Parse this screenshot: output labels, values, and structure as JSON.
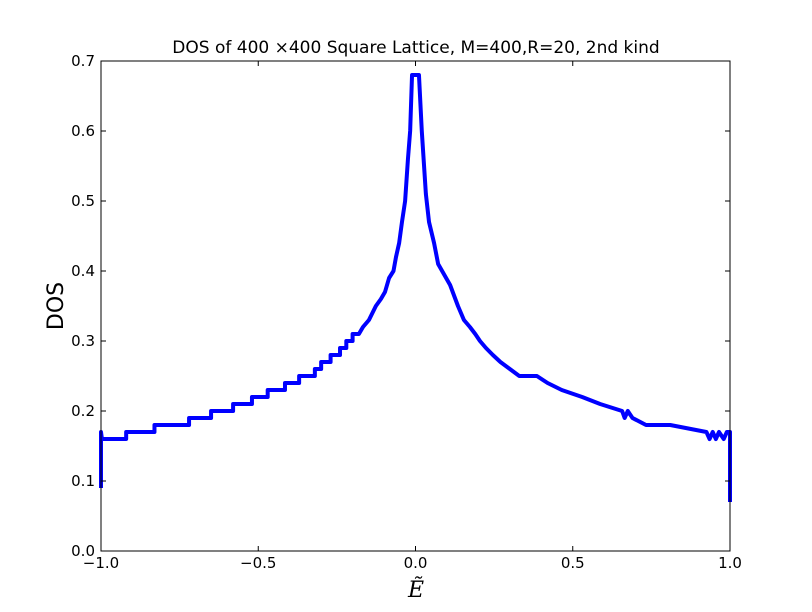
{
  "chart_data": {
    "type": "line",
    "title": "DOS of 400 ×400 Square Lattice, M=400,R=20, 2nd kind",
    "xlabel": "Ẽ",
    "ylabel": "DOS",
    "x": [
      -1,
      -1,
      -0.997,
      -0.92,
      -0.92,
      -0.83,
      -0.83,
      -0.72,
      -0.72,
      -0.65,
      -0.65,
      -0.58,
      -0.58,
      -0.52,
      -0.52,
      -0.47,
      -0.47,
      -0.415,
      -0.415,
      -0.37,
      -0.37,
      -0.32,
      -0.32,
      -0.3,
      -0.3,
      -0.27,
      -0.27,
      -0.24,
      -0.24,
      -0.22,
      -0.22,
      -0.2,
      -0.2,
      -0.18,
      -0.167,
      -0.148,
      -0.126,
      -0.11,
      -0.097,
      -0.084,
      -0.07,
      -0.062,
      -0.052,
      -0.043,
      -0.033,
      -0.024,
      -0.017,
      -0.011,
      0.011,
      0.02,
      0.033,
      0.043,
      0.059,
      0.072,
      0.11,
      0.135,
      0.154,
      0.173,
      0.19,
      0.205,
      0.224,
      0.246,
      0.27,
      0.3,
      0.33,
      0.386,
      0.42,
      0.465,
      0.53,
      0.587,
      0.657,
      0.665,
      0.675,
      0.69,
      0.733,
      0.81,
      0.925,
      0.935,
      0.945,
      0.955,
      0.965,
      0.98,
      0.99,
      1,
      1
    ],
    "series": [
      {
        "name": "DOS",
        "color": "#0000ff",
        "values": [
          0.09,
          0.17,
          0.16,
          0.16,
          0.17,
          0.17,
          0.18,
          0.18,
          0.19,
          0.19,
          0.2,
          0.2,
          0.21,
          0.21,
          0.22,
          0.22,
          0.23,
          0.23,
          0.24,
          0.24,
          0.25,
          0.25,
          0.26,
          0.26,
          0.27,
          0.27,
          0.28,
          0.28,
          0.29,
          0.29,
          0.3,
          0.3,
          0.31,
          0.31,
          0.32,
          0.33,
          0.35,
          0.36,
          0.37,
          0.39,
          0.4,
          0.42,
          0.44,
          0.47,
          0.5,
          0.56,
          0.6,
          0.68,
          0.68,
          0.6,
          0.51,
          0.47,
          0.44,
          0.41,
          0.38,
          0.35,
          0.33,
          0.32,
          0.31,
          0.3,
          0.29,
          0.28,
          0.27,
          0.26,
          0.25,
          0.25,
          0.24,
          0.23,
          0.22,
          0.21,
          0.2,
          0.19,
          0.2,
          0.19,
          0.18,
          0.18,
          0.17,
          0.16,
          0.17,
          0.16,
          0.17,
          0.16,
          0.17,
          0.17,
          0.07
        ]
      }
    ],
    "xlim": [
      -1,
      1
    ],
    "xticks": [
      {
        "value": -1,
        "label": "−1.0"
      },
      {
        "value": -0.5,
        "label": "−0.5"
      },
      {
        "value": 0,
        "label": "0.0"
      },
      0.5,
      {
        "value": 1,
        "label": "1.0"
      }
    ],
    "ylim": [
      0,
      0.7
    ],
    "yticks": [
      {
        "value": 0,
        "label": "0.0"
      },
      0.1,
      0.2,
      0.3,
      0.4,
      0.5,
      0.6,
      0.7
    ],
    "grid": false
  }
}
